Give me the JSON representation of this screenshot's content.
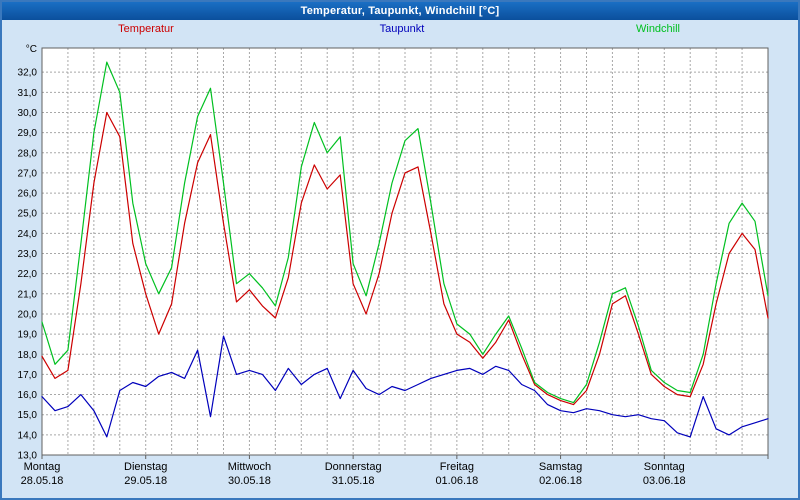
{
  "window": {
    "title": "Temperatur, Taupunkt, Windchill [°C]"
  },
  "legend": [
    {
      "label": "Temperatur",
      "color": "#cc0000"
    },
    {
      "label": "Taupunkt",
      "color": "#0000bb"
    },
    {
      "label": "Windchill",
      "color": "#00c020"
    }
  ],
  "colors": {
    "titlebar": "#0d5cad",
    "window_bg": "#d2e4f5",
    "plot_bg": "#ffffff",
    "grid": "#a8a8a8",
    "plot_border": "#606060",
    "axis_text": "#000000"
  },
  "chart_data": {
    "type": "line",
    "title": "Temperatur, Taupunkt, Windchill [°C]",
    "ylabel": "°C",
    "ylim": [
      13,
      33.2
    ],
    "y_ticks": [
      32,
      31,
      30,
      29,
      28,
      27,
      26,
      25,
      24,
      23,
      22,
      21,
      20,
      19,
      18,
      17,
      16,
      15,
      14,
      13
    ],
    "y_tick_decimal_separator": ",",
    "grid": {
      "x_step_hours": 6,
      "y_step": 1,
      "style": "dashed"
    },
    "legend_position": "top",
    "x_unit": "hours",
    "x_hours": [
      0,
      3,
      6,
      9,
      12,
      15,
      18,
      21,
      24,
      27,
      30,
      33,
      36,
      39,
      42,
      45,
      48,
      51,
      54,
      57,
      60,
      63,
      66,
      69,
      72,
      75,
      78,
      81,
      84,
      87,
      90,
      93,
      96,
      99,
      102,
      105,
      108,
      111,
      114,
      117,
      120,
      123,
      126,
      129,
      132,
      135,
      138,
      141,
      144,
      147,
      150,
      153,
      156,
      159,
      162,
      165,
      168
    ],
    "days": [
      {
        "name": "Montag",
        "date": "28.05.18"
      },
      {
        "name": "Dienstag",
        "date": "29.05.18"
      },
      {
        "name": "Mittwoch",
        "date": "30.05.18"
      },
      {
        "name": "Donnerstag",
        "date": "31.05.18"
      },
      {
        "name": "Freitag",
        "date": "01.06.18"
      },
      {
        "name": "Samstag",
        "date": "02.06.18"
      },
      {
        "name": "Sonntag",
        "date": "03.06.18"
      }
    ],
    "series": [
      {
        "name": "Temperatur",
        "color": "#cc0000",
        "values": [
          17.9,
          16.8,
          17.2,
          21.5,
          26.5,
          30.0,
          28.8,
          23.5,
          21.0,
          19.0,
          20.5,
          24.5,
          27.5,
          28.9,
          24.5,
          20.6,
          21.2,
          20.4,
          19.8,
          21.8,
          25.5,
          27.4,
          26.2,
          26.9,
          21.5,
          20.0,
          22.0,
          25.0,
          27.0,
          27.3,
          24.0,
          20.5,
          19.0,
          18.6,
          17.8,
          18.6,
          19.7,
          18.0,
          16.5,
          16.0,
          15.7,
          15.5,
          16.2,
          18.0,
          20.5,
          20.9,
          19.0,
          17.0,
          16.4,
          16.0,
          15.9,
          17.5,
          20.5,
          23.0,
          24.0,
          23.2,
          19.8
        ]
      },
      {
        "name": "Taupunkt",
        "color": "#0000bb",
        "values": [
          15.9,
          15.2,
          15.4,
          16.0,
          15.2,
          13.9,
          16.2,
          16.6,
          16.4,
          16.9,
          17.1,
          16.8,
          18.2,
          14.9,
          18.9,
          17.0,
          17.2,
          17.0,
          16.2,
          17.3,
          16.5,
          17.0,
          17.3,
          15.8,
          17.2,
          16.3,
          16.0,
          16.4,
          16.2,
          16.5,
          16.8,
          17.0,
          17.2,
          17.3,
          17.0,
          17.4,
          17.2,
          16.5,
          16.2,
          15.5,
          15.2,
          15.1,
          15.3,
          15.2,
          15.0,
          14.9,
          15.0,
          14.8,
          14.7,
          14.1,
          13.9,
          15.9,
          14.3,
          14.0,
          14.4,
          14.6,
          14.8
        ]
      },
      {
        "name": "Windchill",
        "color": "#00c020",
        "values": [
          19.6,
          17.5,
          18.2,
          23.5,
          29.0,
          32.5,
          31.0,
          25.5,
          22.5,
          21.0,
          22.3,
          26.5,
          29.8,
          31.2,
          26.5,
          21.5,
          22.0,
          21.3,
          20.4,
          22.8,
          27.3,
          29.5,
          28.0,
          28.8,
          22.5,
          20.9,
          23.5,
          26.5,
          28.6,
          29.2,
          25.5,
          21.5,
          19.5,
          19.0,
          18.0,
          19.0,
          19.9,
          18.3,
          16.6,
          16.1,
          15.8,
          15.6,
          16.5,
          18.6,
          21.0,
          21.3,
          19.4,
          17.2,
          16.6,
          16.2,
          16.1,
          18.0,
          21.5,
          24.5,
          25.5,
          24.6,
          20.9
        ]
      }
    ]
  }
}
